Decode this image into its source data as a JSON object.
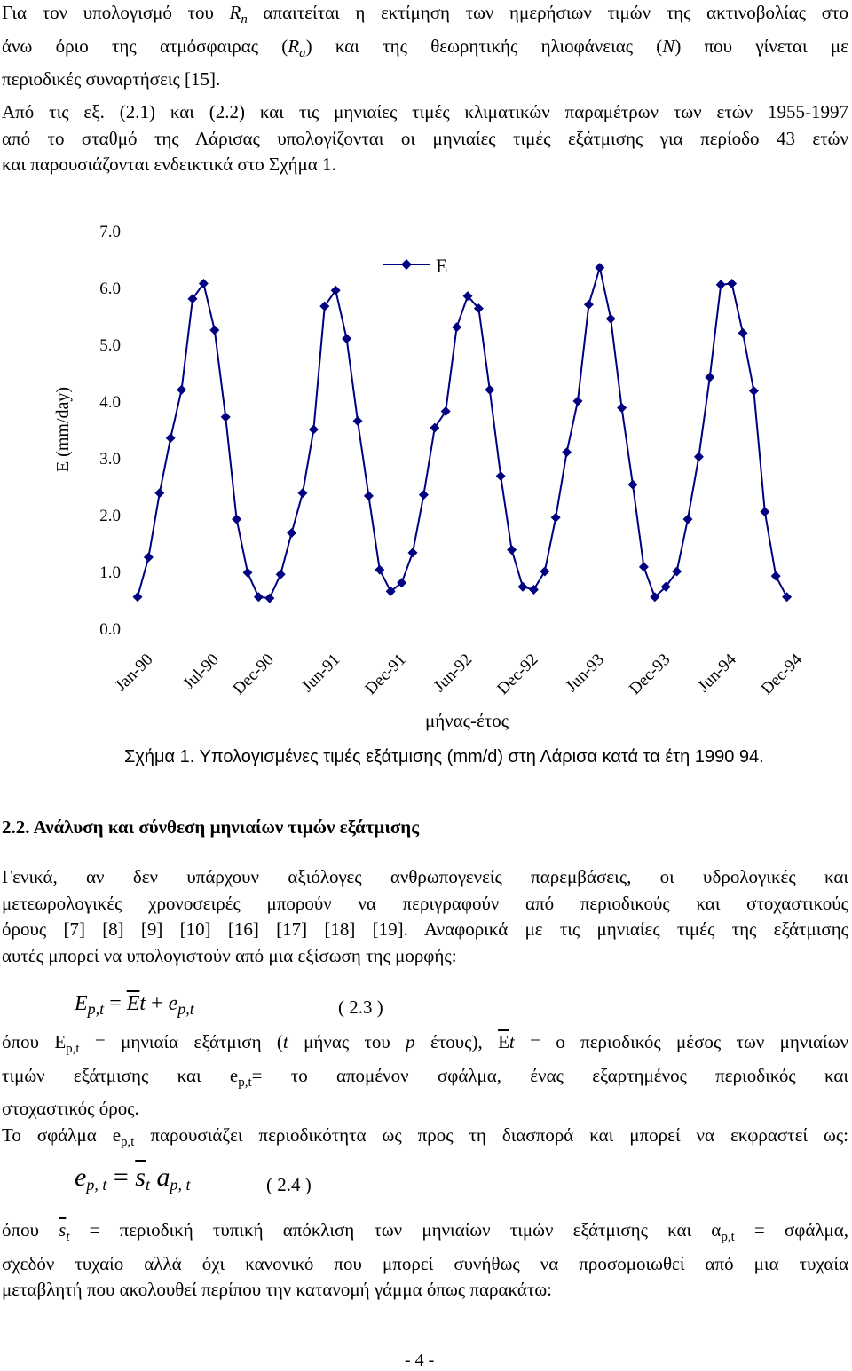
{
  "intro": {
    "line1_a": "Για τον υπολογισμό του ",
    "line1_R": "R",
    "line1_Rsub": "n",
    "line1_b": " απαιτείται η εκτίμηση των ημερήσιων τιμών της ακτινοβολίας στο",
    "line2_a": "άνω όριο της ατμόσφαιρας (",
    "line2_R": "R",
    "line2_Rsub": "a",
    "line2_b": ") και της θεωρητικής ηλιοφάνειας (",
    "line2_N": "N",
    "line2_c": ") που γίνεται με",
    "line3": "περιοδικές συναρτήσεις [15]."
  },
  "para2": {
    "line1": "Από τις εξ. (2.1) και (2.2) και τις μηνιαίες τιμές κλιματικών παραμέτρων των ετών 1955-1997",
    "line2": "από το σταθμό της Λάρισας υπολογίζονται οι μηνιαίες τιμές εξάτμισης για περίοδο 43 ετών",
    "line3": "και παρουσιάζονται ενδεικτικά στο Σχήμα 1."
  },
  "chart_data": {
    "type": "line",
    "title": "",
    "ylabel": "E (mm/day)",
    "xlabel": "μήνας-έτος",
    "ylim": [
      0,
      7
    ],
    "yticks": [
      "0.0",
      "1.0",
      "2.0",
      "3.0",
      "4.0",
      "5.0",
      "6.0",
      "7.0"
    ],
    "xtick_labels": [
      "Jan-90",
      "Jul-90",
      "Dec-90",
      "Jun-91",
      "Dec-91",
      "Jun-92",
      "Dec-92",
      "Jun-93",
      "Dec-93",
      "Jun-94",
      "Dec-94"
    ],
    "xtick_index": [
      0,
      6,
      11,
      17,
      23,
      29,
      35,
      41,
      47,
      53,
      59
    ],
    "legend": "top-center",
    "series": [
      {
        "name": "E",
        "color": "#000080",
        "values": [
          0.55,
          1.25,
          2.38,
          3.35,
          4.2,
          5.8,
          6.07,
          5.25,
          3.72,
          1.92,
          0.98,
          0.55,
          0.53,
          0.95,
          1.68,
          2.38,
          3.5,
          5.67,
          5.95,
          5.1,
          3.65,
          2.33,
          1.03,
          0.65,
          0.8,
          1.33,
          2.35,
          3.53,
          3.82,
          5.3,
          5.85,
          5.63,
          4.2,
          2.68,
          1.38,
          0.73,
          0.68,
          1.0,
          1.95,
          3.1,
          4.0,
          5.7,
          6.35,
          5.45,
          3.88,
          2.53,
          1.08,
          0.55,
          0.73,
          1.0,
          1.92,
          3.02,
          4.42,
          6.05,
          6.07,
          5.2,
          4.18,
          2.05,
          0.92,
          0.55
        ]
      }
    ]
  },
  "figure": {
    "caption": "Σχήμα 1. Υπολογισμένες τιμές εξάτμισης (mm/d) στη Λάρισα κατά τα έτη 1990 94."
  },
  "section": {
    "heading": "2.2. Ανάλυση και σύνθεση μηνιαίων τιμών εξάτμισης"
  },
  "para3": {
    "line1": "Γενικά, αν δεν υπάρχουν αξιόλογες ανθρωπογενείς παρεμβάσεις, οι υδρολογικές και",
    "line2": "μετεωρολογικές χρονοσειρές μπορούν να περιγραφούν από περιοδικούς και στοχαστικούς",
    "line3": "όρους [7] [8] [9] [10] [16] [17] [18] [19]. Αναφορικά με τις μηνιαίες τιμές της εξάτμισης",
    "line4": "αυτές μπορεί να υπολογιστούν από μια εξίσωση της μορφής:"
  },
  "eq23": {
    "E": "E",
    "sub1": "p,t",
    "eq": " = ",
    "Ebar": "E",
    "t": "t",
    "plus": " + ",
    "e": "e",
    "sub2": "p,t",
    "num": "( 2.3 )"
  },
  "para4": {
    "l1_a": "όπου E",
    "l1_sub": "p,t",
    "l1_b": " = μηνιαία εξάτμιση (",
    "l1_t": "t",
    "l1_c": " μήνας του ",
    "l1_p": "p",
    "l1_d": " έτους), ",
    "l1_E": "E",
    "l1_t2": "t",
    "l1_e": " = ο περιοδικός μέσος των μηνιαίων",
    "l2_a": "τιμών εξάτμισης και e",
    "l2_sub": "p,t",
    "l2_b": "= το απομένον σφάλμα, ένας εξαρτημένος περιοδικός και",
    "l3": "στοχαστικός όρος.",
    "l4_a": "Το σφάλμα e",
    "l4_sub": "p,t",
    "l4_b": " παρουσιάζει περιοδικότητα ως προς τη διασπορά και μπορεί να εκφραστεί ως:"
  },
  "eq24": {
    "e": "e",
    "sub1": "p, t",
    "eq": " = ",
    "s": "s",
    "t": "t",
    "a": "a",
    "sub2": "p, t",
    "num": "( 2.4 )"
  },
  "para5": {
    "l1_a": "όπου ",
    "l1_s": "s",
    "l1_t": "t",
    "l1_b": " = περιοδική τυπική απόκλιση των μηνιαίων τιμών εξάτμισης και α",
    "l1_sub": "p,t",
    "l1_c": " = σφάλμα,",
    "l2": "σχεδόν τυχαίο αλλά όχι κανονικό που μπορεί συνήθως να προσομοιωθεί από μια τυχαία",
    "l3": "μεταβλητή που ακολουθεί περίπου την κατανομή γάμμα όπως παρακάτω:"
  },
  "footer": {
    "page": "- 4 -"
  }
}
